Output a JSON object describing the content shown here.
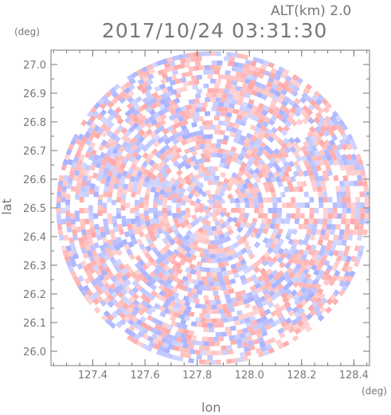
{
  "chart_data": {
    "type": "heatmap",
    "header_altitude": "ALT(km) 2.0",
    "title": "2017/10/24 03:31:30",
    "xlabel": "lon",
    "ylabel": "lat",
    "x_unit": "(deg)",
    "y_unit": "(deg)",
    "xlim": [
      127.24,
      128.46
    ],
    "ylim": [
      25.95,
      27.05
    ],
    "x_ticks": [
      "127.4",
      "127.6",
      "127.8",
      "128.0",
      "128.2",
      "128.4"
    ],
    "y_ticks": [
      "27.0",
      "26.9",
      "26.8",
      "26.7",
      "26.6",
      "26.5",
      "26.4",
      "26.3",
      "26.2",
      "26.1",
      "26.0"
    ],
    "center": {
      "lon": 127.86,
      "lat": 26.5
    },
    "radius_deg_lon": 0.6,
    "colors": {
      "positive": "#ff9e9e",
      "negative": "#9ea8ff",
      "neutral": "#ffffff",
      "axes": "#777777"
    },
    "description_note": "Polar radar-style field: alternating red/blue speckle around a circular domain"
  }
}
